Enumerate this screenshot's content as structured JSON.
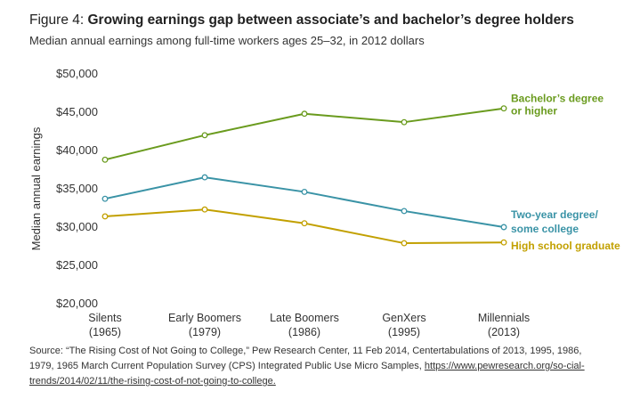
{
  "figure": {
    "label": "Figure 4:",
    "title": "Growing earnings gap between associate’s and bachelor’s degree holders",
    "subtitle": "Median annual earnings among full-time workers ages 25–32, in 2012 dollars"
  },
  "chart_data": {
    "type": "line",
    "ylabel": "Median annual earnings",
    "xlabel": "",
    "ylim": [
      20000,
      50000
    ],
    "yticks": [
      20000,
      25000,
      30000,
      35000,
      40000,
      45000,
      50000
    ],
    "ytick_labels": [
      "$20,000",
      "$25,000",
      "$30,000",
      "$35,000",
      "$40,000",
      "$45,000",
      "$50,000"
    ],
    "categories": [
      {
        "name": "Silents",
        "year": "(1965)"
      },
      {
        "name": "Early Boomers",
        "year": "(1979)"
      },
      {
        "name": "Late Boomers",
        "year": "(1986)"
      },
      {
        "name": "GenXers",
        "year": "(1995)"
      },
      {
        "name": "Millennials",
        "year": "(2013)"
      }
    ],
    "series": [
      {
        "name": "bachelors",
        "label_lines": [
          "Bachelor’s degree",
          "or higher"
        ],
        "color": "#6a9b1e",
        "values": [
          38800,
          42000,
          44800,
          43700,
          45500
        ]
      },
      {
        "name": "two-year",
        "label_lines": [
          "Two-year degree/",
          "some college"
        ],
        "color": "#3a93a6",
        "values": [
          33700,
          36500,
          34600,
          32100,
          30000
        ]
      },
      {
        "name": "high-school",
        "label_lines": [
          "High school graduate"
        ],
        "color": "#c2a000",
        "values": [
          31400,
          32300,
          30500,
          27900,
          28000
        ]
      }
    ],
    "grid": false,
    "legend": "right end labels"
  },
  "source": {
    "text": "Source: “The Rising Cost of Not Going to College,” Pew Research Center, 11 Feb 2014, Centertabulations of 2013, 1995, 1986, 1979, 1965 March Current Population Survey (CPS) Integrated Public Use Micro Samples, ",
    "link": "https://www.pewresearch.org/so-cial-trends/2014/02/11/the-rising-cost-of-not-going-to-college."
  }
}
